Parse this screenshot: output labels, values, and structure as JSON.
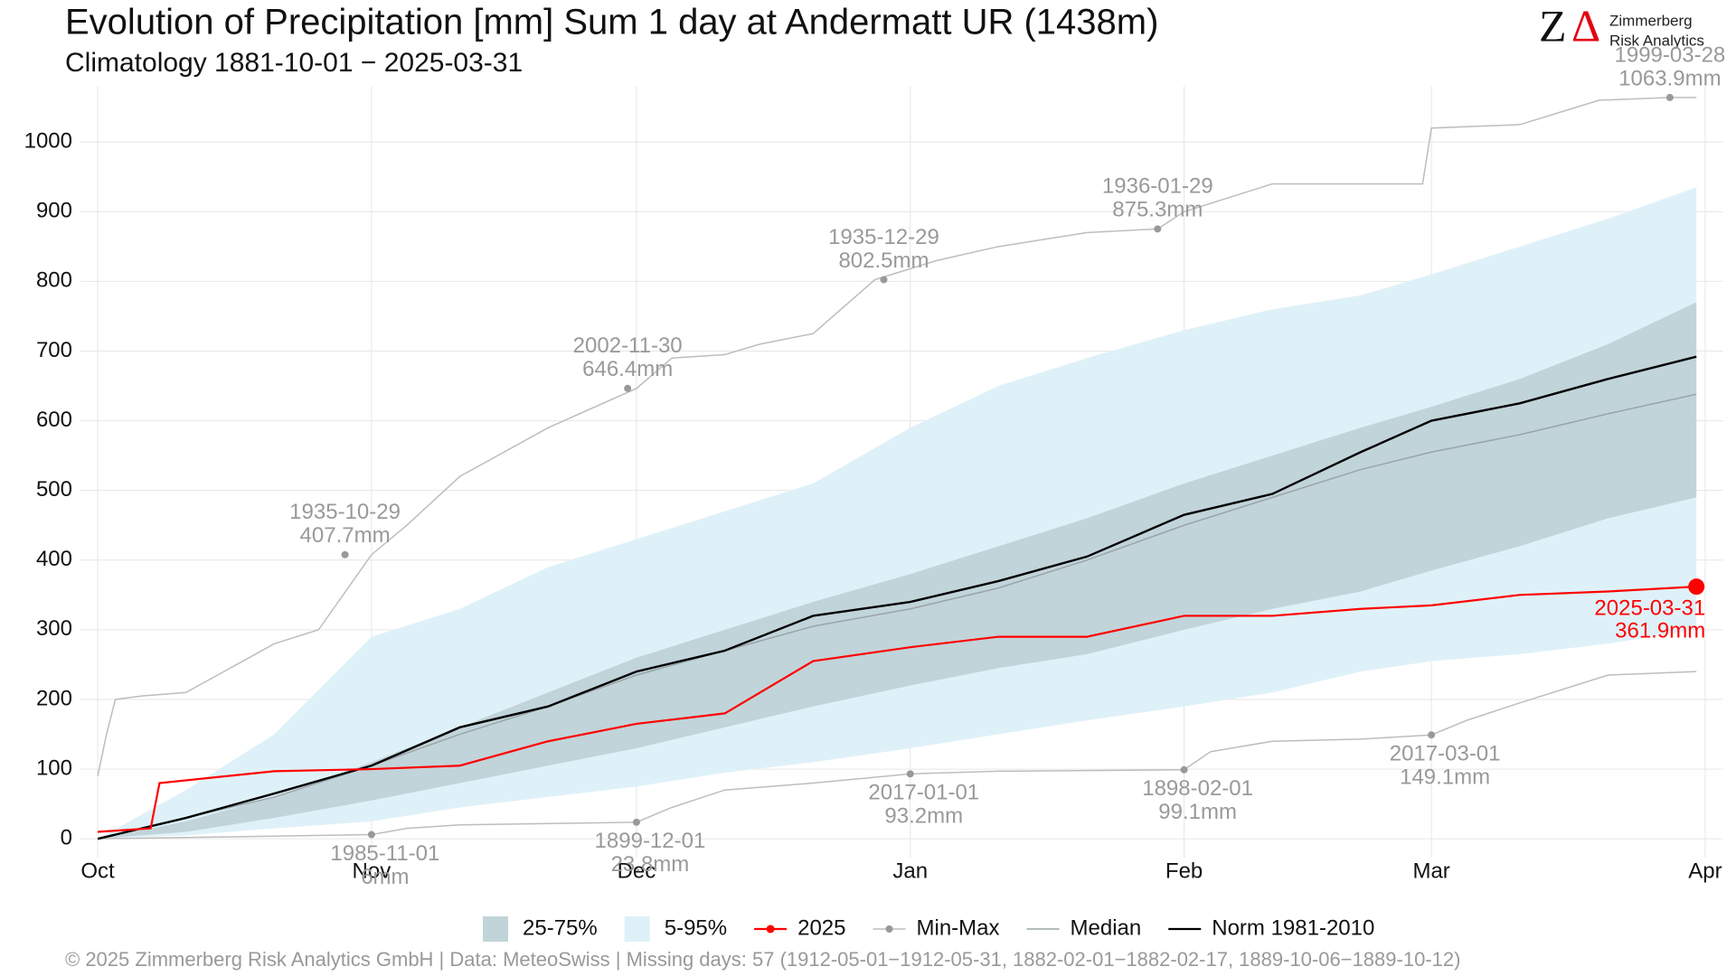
{
  "chart_data": {
    "type": "climatology",
    "title": "Evolution of Precipitation [mm] Sum 1 day at Andermatt  UR (1438m)",
    "subtitle": "Climatology 1881-10-01 − 2025-03-31",
    "logo": {
      "mark1": "Z",
      "mark2": "Δ",
      "line1": "Zimmerberg",
      "line2": "Risk Analytics"
    },
    "footer": "©  2025 Zimmerberg Risk Analytics GmbH | Data: MeteoSwiss | Missing days: 57 (1912-05-01−1912-05-31, 1882-02-01−1882-02-17, 1889-10-06−1889-10-12)",
    "xlim": [
      -2,
      184
    ],
    "xticks": [
      {
        "value": 0,
        "label": "Oct"
      },
      {
        "value": 31,
        "label": "Nov"
      },
      {
        "value": 61,
        "label": "Dec"
      },
      {
        "value": 92,
        "label": "Jan"
      },
      {
        "value": 123,
        "label": "Feb"
      },
      {
        "value": 151,
        "label": "Mar"
      },
      {
        "value": 182,
        "label": "Apr"
      }
    ],
    "ylim": [
      -27,
      1080
    ],
    "yticks": [
      0,
      100,
      200,
      300,
      400,
      500,
      600,
      700,
      800,
      900,
      1000
    ],
    "grid": true,
    "bands": [
      {
        "name": "5-95%",
        "color": "#dff1f8",
        "x": [
          0,
          10,
          20,
          31,
          41,
          51,
          61,
          71,
          81,
          92,
          102,
          112,
          123,
          133,
          143,
          151,
          161,
          171,
          181
        ],
        "lower": [
          0,
          5,
          15,
          25,
          45,
          60,
          75,
          95,
          110,
          130,
          150,
          170,
          190,
          210,
          240,
          255,
          265,
          280,
          300
        ],
        "upper": [
          0,
          70,
          150,
          290,
          330,
          390,
          430,
          470,
          510,
          590,
          650,
          690,
          730,
          760,
          780,
          810,
          850,
          890,
          935
        ]
      },
      {
        "name": "25-75%",
        "color": "#c1d4d9",
        "x": [
          0,
          10,
          20,
          31,
          41,
          51,
          61,
          71,
          81,
          92,
          102,
          112,
          123,
          133,
          143,
          151,
          161,
          171,
          181
        ],
        "lower": [
          0,
          10,
          30,
          55,
          80,
          105,
          130,
          160,
          190,
          220,
          245,
          265,
          300,
          330,
          355,
          385,
          420,
          460,
          490
        ],
        "upper": [
          0,
          25,
          60,
          110,
          160,
          210,
          260,
          300,
          340,
          380,
          420,
          460,
          510,
          550,
          590,
          620,
          660,
          710,
          770
        ]
      }
    ],
    "series": [
      {
        "name": "Min-Max",
        "color": "#bdbdbd",
        "x": [
          0,
          1,
          2,
          5,
          10,
          20,
          25,
          31,
          35,
          41,
          51,
          61,
          65,
          71,
          75,
          81,
          88,
          95,
          102,
          112,
          120,
          123,
          133,
          143,
          150,
          151,
          161,
          170,
          178,
          181
        ],
        "values": [
          90,
          150,
          200,
          205,
          210,
          280,
          300,
          407.7,
          450,
          520,
          590,
          646.4,
          690,
          695,
          710,
          725,
          802.5,
          830,
          850,
          870,
          875.3,
          900,
          940,
          940,
          940,
          1020,
          1025,
          1060,
          1063.9,
          1063.9
        ]
      },
      {
        "name": "Min-Max",
        "color": "#bdbdbd",
        "x": [
          0,
          31,
          35,
          41,
          61,
          65,
          71,
          81,
          92,
          102,
          123,
          126,
          133,
          143,
          151,
          155,
          161,
          171,
          181
        ],
        "values": [
          0,
          6,
          15,
          20,
          23.8,
          45,
          70,
          80,
          93.2,
          97,
          99.1,
          125,
          140,
          143,
          149.1,
          170,
          195,
          235,
          240
        ]
      },
      {
        "name": "Median",
        "color": "#9aa5a8",
        "x": [
          0,
          10,
          20,
          31,
          41,
          51,
          61,
          71,
          81,
          92,
          102,
          112,
          123,
          133,
          143,
          151,
          161,
          171,
          181
        ],
        "values": [
          0,
          30,
          60,
          105,
          150,
          190,
          235,
          270,
          305,
          330,
          360,
          400,
          450,
          490,
          530,
          555,
          580,
          610,
          638
        ]
      },
      {
        "name": "Norm 1981-2010",
        "color": "#000000",
        "x": [
          0,
          10,
          20,
          31,
          41,
          51,
          61,
          71,
          81,
          92,
          102,
          112,
          123,
          133,
          143,
          151,
          161,
          171,
          181
        ],
        "values": [
          0,
          30,
          65,
          105,
          160,
          190,
          240,
          270,
          320,
          340,
          370,
          405,
          465,
          495,
          555,
          600,
          625,
          660,
          692
        ]
      },
      {
        "name": "2025",
        "color": "#ff0000",
        "x": [
          0,
          6,
          7,
          20,
          31,
          41,
          51,
          61,
          71,
          81,
          92,
          102,
          112,
          123,
          133,
          143,
          151,
          161,
          171,
          181
        ],
        "values": [
          10,
          15,
          80,
          97,
          100,
          105,
          140,
          165,
          180,
          255,
          275,
          290,
          290,
          320,
          320,
          330,
          335,
          350,
          355,
          361.9
        ]
      }
    ],
    "max_annotations": [
      {
        "x": 28,
        "y": 407.7,
        "date": "1935-10-29",
        "label": "407.7mm"
      },
      {
        "x": 60,
        "y": 646.4,
        "date": "2002-11-30",
        "label": "646.4mm"
      },
      {
        "x": 89,
        "y": 802.5,
        "date": "1935-12-29",
        "label": "802.5mm"
      },
      {
        "x": 120,
        "y": 875.3,
        "date": "1936-01-29",
        "label": "875.3mm"
      },
      {
        "x": 178,
        "y": 1063.9,
        "date": "1999-03-28",
        "label": "1063.9mm"
      }
    ],
    "min_annotations": [
      {
        "x": 31,
        "y": 6,
        "date": "1985-11-01",
        "label": "6mm"
      },
      {
        "x": 61,
        "y": 23.8,
        "date": "1899-12-01",
        "label": "23.8mm"
      },
      {
        "x": 92,
        "y": 93.2,
        "date": "2017-01-01",
        "label": "93.2mm"
      },
      {
        "x": 123,
        "y": 99.1,
        "date": "1898-02-01",
        "label": "99.1mm"
      },
      {
        "x": 151,
        "y": 149.1,
        "date": "2017-03-01",
        "label": "149.1mm"
      }
    ],
    "current_annotation": {
      "x": 181,
      "y": 361.9,
      "date": "2025-03-31",
      "label": "361.9mm",
      "color": "#ff0000"
    }
  }
}
